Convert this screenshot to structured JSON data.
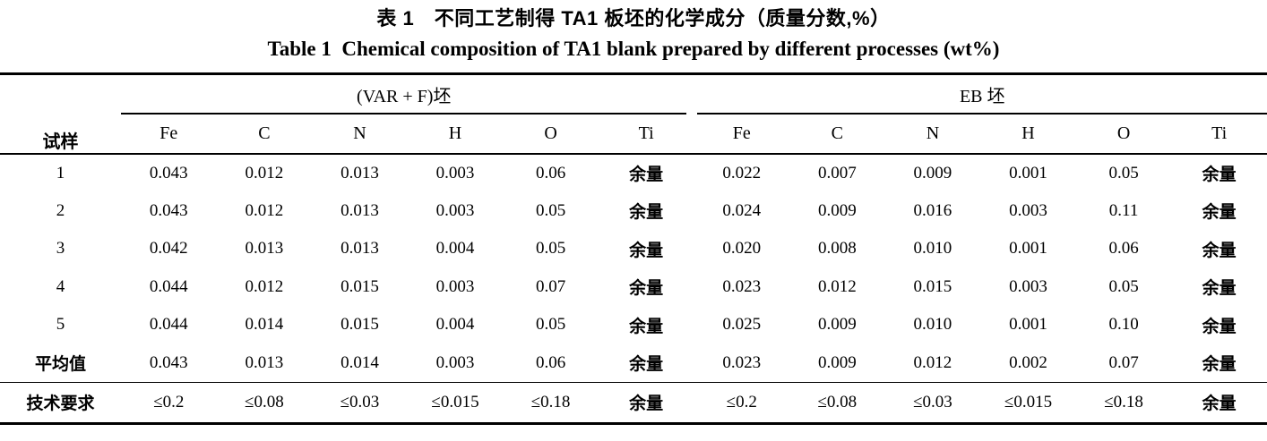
{
  "title": {
    "zh": "表 1　不同工艺制得 TA1 板坯的化学成分（质量分数,%）",
    "en": "Table 1  Chemical composition of TA1 blank prepared by different processes (wt%)"
  },
  "colors": {
    "text": "#000000",
    "background": "#ffffff",
    "rule": "#000000"
  },
  "table": {
    "sample_header": "试样",
    "groups": [
      {
        "label": "(VAR + F)坯"
      },
      {
        "label": "EB 坯"
      }
    ],
    "element_headers": [
      "Fe",
      "C",
      "N",
      "H",
      "O",
      "Ti"
    ],
    "rows": [
      {
        "label": "1",
        "values": [
          "0.043",
          "0.012",
          "0.013",
          "0.003",
          "0.06",
          "余量",
          "0.022",
          "0.007",
          "0.009",
          "0.001",
          "0.05",
          "余量"
        ]
      },
      {
        "label": "2",
        "values": [
          "0.043",
          "0.012",
          "0.013",
          "0.003",
          "0.05",
          "余量",
          "0.024",
          "0.009",
          "0.016",
          "0.003",
          "0.11",
          "余量"
        ]
      },
      {
        "label": "3",
        "values": [
          "0.042",
          "0.013",
          "0.013",
          "0.004",
          "0.05",
          "余量",
          "0.020",
          "0.008",
          "0.010",
          "0.001",
          "0.06",
          "余量"
        ]
      },
      {
        "label": "4",
        "values": [
          "0.044",
          "0.012",
          "0.015",
          "0.003",
          "0.07",
          "余量",
          "0.023",
          "0.012",
          "0.015",
          "0.003",
          "0.05",
          "余量"
        ]
      },
      {
        "label": "5",
        "values": [
          "0.044",
          "0.014",
          "0.015",
          "0.004",
          "0.05",
          "余量",
          "0.025",
          "0.009",
          "0.010",
          "0.001",
          "0.10",
          "余量"
        ]
      },
      {
        "label": "平均值",
        "values": [
          "0.043",
          "0.013",
          "0.014",
          "0.003",
          "0.06",
          "余量",
          "0.023",
          "0.009",
          "0.012",
          "0.002",
          "0.07",
          "余量"
        ]
      }
    ],
    "requirement_row": {
      "label": "技术要求",
      "values": [
        "≤0.2",
        "≤0.08",
        "≤0.03",
        "≤0.015",
        "≤0.18",
        "余量",
        "≤0.2",
        "≤0.08",
        "≤0.03",
        "≤0.015",
        "≤0.18",
        "余量"
      ]
    }
  }
}
